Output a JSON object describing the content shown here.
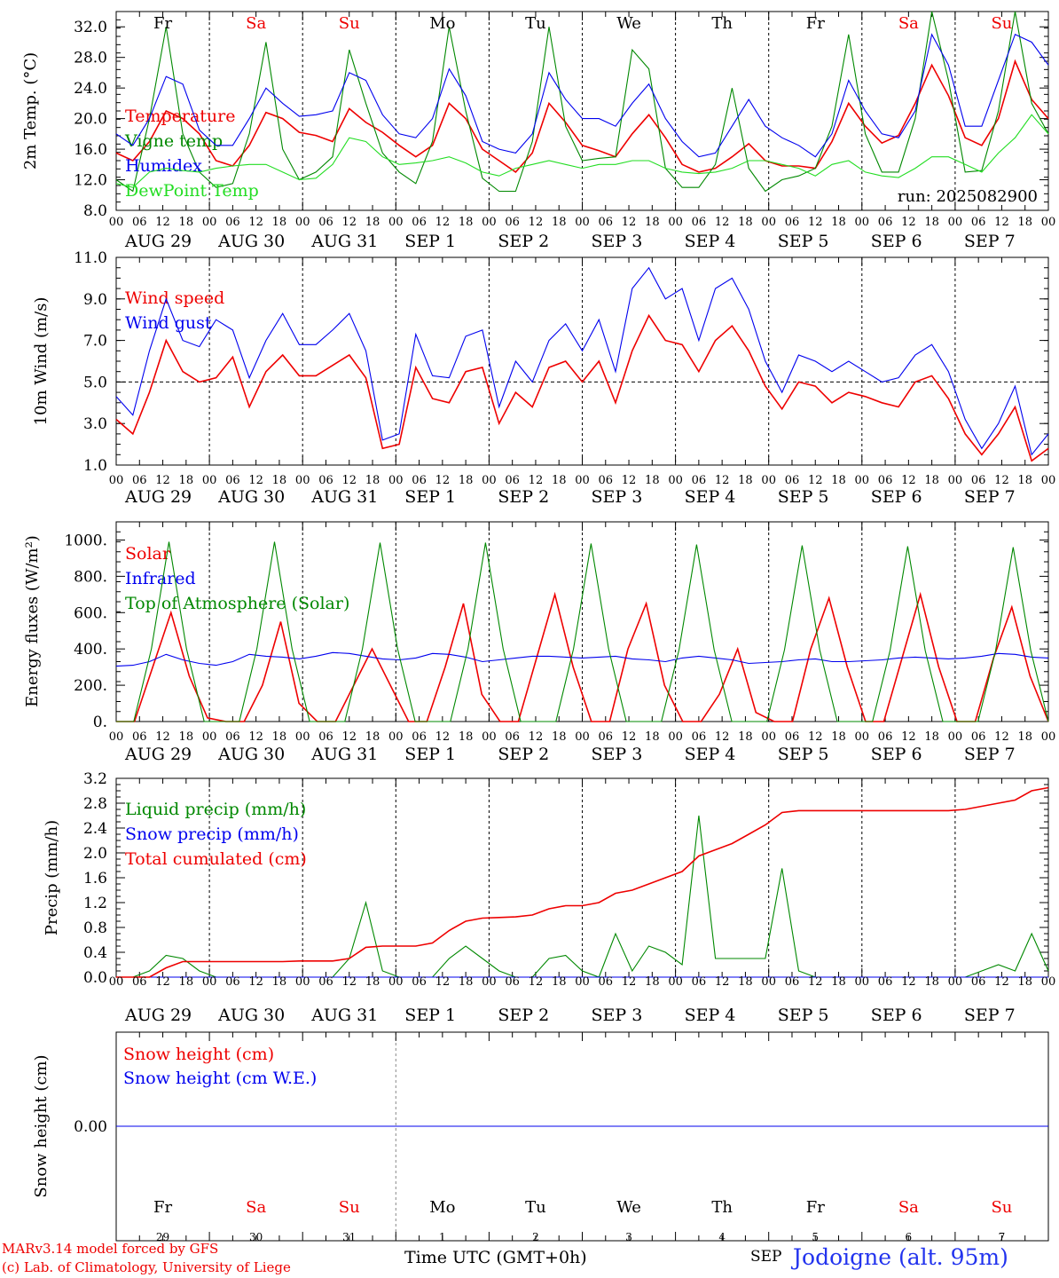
{
  "footer": {
    "model_line": "MARv3.14 model forced by GFS",
    "credit_line": "(c) Lab. of Climatology, University of Liege",
    "time_axis_label": "Time UTC (GMT+0h)",
    "month_label": "SEP",
    "station_label": "Jodoigne (alt. 95m)"
  },
  "colors": {
    "red": "#ee0000",
    "green": "#008800",
    "blue": "#0000ee",
    "lightgreen": "#22dd22",
    "grid": "#555555"
  },
  "days": {
    "weekday_labels": [
      "Fr",
      "Sa",
      "Su",
      "Mo",
      "Tu",
      "We",
      "Th",
      "Fr",
      "Sa",
      "Su"
    ],
    "weekday_colors": [
      "black",
      "red",
      "red",
      "black",
      "black",
      "black",
      "black",
      "black",
      "red",
      "red"
    ],
    "date_labels": [
      "AUG 29",
      "AUG 30",
      "AUG 31",
      "SEP  1",
      "SEP  2",
      "SEP  3",
      "SEP  4",
      "SEP  5",
      "SEP  6",
      "SEP  7"
    ],
    "day_numbers": [
      "29",
      "30",
      "31",
      "1",
      "2",
      "3",
      "4",
      "5",
      "6",
      "7"
    ],
    "hour_ticks": [
      "00",
      "06",
      "12",
      "18"
    ]
  },
  "chart_data": [
    {
      "type": "line",
      "ylabel": "2m Temp. (°C)",
      "ylim": [
        8.0,
        34.0
      ],
      "yticks": [
        8.0,
        12.0,
        16.0,
        20.0,
        24.0,
        28.0,
        32.0
      ],
      "yticks_labels": [
        "8.0",
        "12.0",
        "16.0",
        "20.0",
        "24.0",
        "28.0",
        "32.0"
      ],
      "x_start_hour": 0,
      "x_end_hour": 240,
      "x_step_hours": 6,
      "run_label": "run: 2025082900",
      "series": [
        {
          "name": "Temperature",
          "color": "red",
          "values": [
            15.5,
            14.5,
            17,
            21,
            20,
            18,
            14.5,
            13.8,
            16.5,
            20.8,
            20,
            18.2,
            17.8,
            17,
            21.3,
            19.5,
            18.2,
            16.5,
            15,
            16.5,
            22,
            20,
            16,
            14.5,
            13,
            15.5,
            22,
            19.5,
            16.5,
            15.8,
            15,
            18,
            20.5,
            17.5,
            14,
            13,
            13.5,
            15,
            16.7,
            14.5,
            13.8,
            13.8,
            13.5,
            17,
            22,
            19,
            16.8,
            17.8,
            22,
            27,
            23,
            17.5,
            16.5,
            20,
            27.5,
            22.5,
            20
          ]
        },
        {
          "name": "Vigne temp",
          "color": "green",
          "values": [
            12,
            10.5,
            20,
            32,
            18,
            13,
            11,
            11.5,
            18,
            30,
            16,
            12,
            13,
            15,
            29,
            22,
            15.5,
            13,
            11.5,
            17,
            32,
            21,
            12.2,
            10.5,
            10.5,
            17,
            32,
            19,
            14.5,
            14.8,
            15,
            29,
            26.5,
            13.5,
            11,
            11,
            14,
            24,
            13.5,
            10.5,
            12,
            12.5,
            13.5,
            19,
            31,
            18,
            13,
            13,
            20,
            34,
            25,
            13,
            13.2,
            21,
            34,
            22,
            18
          ]
        },
        {
          "name": "Humidex",
          "color": "blue",
          "values": [
            18,
            16.5,
            20,
            25.5,
            24.5,
            18.5,
            16.5,
            16.5,
            20,
            24,
            22,
            20.3,
            20.5,
            21,
            26,
            25,
            20.5,
            18,
            17.5,
            20,
            26.5,
            23,
            17,
            16,
            15.5,
            18,
            26,
            22.5,
            20,
            20,
            19,
            22,
            24.5,
            20,
            17,
            15,
            15.5,
            19,
            22.5,
            19,
            17.5,
            16.5,
            15,
            18,
            25,
            21,
            18,
            17.5,
            21,
            31,
            27,
            19,
            19,
            25,
            31,
            30,
            27
          ]
        },
        {
          "name": "DewPoint Temp",
          "color": "lightgreen",
          "values": [
            11.5,
            11,
            13,
            13.5,
            13.2,
            13,
            13.5,
            13.8,
            14,
            14,
            13,
            12,
            12.2,
            14,
            17.5,
            17,
            15,
            14,
            14.2,
            14.5,
            15,
            14.2,
            13,
            12.5,
            13.5,
            14,
            14.5,
            14,
            13.5,
            14,
            14,
            14.5,
            14.5,
            13.5,
            13,
            12.8,
            13,
            13.5,
            14.5,
            14.5,
            14,
            13.5,
            12.5,
            14,
            14.5,
            13,
            12.5,
            12.3,
            13.5,
            15,
            15,
            14,
            13,
            15.5,
            17.5,
            20.5,
            18
          ]
        }
      ]
    },
    {
      "type": "line",
      "ylabel": "10m Wind (m/s)",
      "ylim": [
        1.0,
        11.0
      ],
      "yticks": [
        1.0,
        3.0,
        5.0,
        7.0,
        9.0,
        11.0
      ],
      "yticks_labels": [
        "1.0",
        "3.0",
        "5.0",
        "7.0",
        "9.0",
        "11.0"
      ],
      "x_start_hour": 0,
      "x_end_hour": 240,
      "x_step_hours": 6,
      "reference_line": 5.0,
      "series": [
        {
          "name": "Wind speed",
          "color": "red",
          "values": [
            3.2,
            2.5,
            4.5,
            7,
            5.5,
            5,
            5.2,
            6.2,
            3.8,
            5.5,
            6.3,
            5.3,
            5.3,
            5.8,
            6.3,
            5.2,
            1.8,
            2,
            5.7,
            4.2,
            4,
            5.5,
            5.7,
            3,
            4.5,
            3.8,
            5.7,
            6,
            5,
            6,
            4,
            6.5,
            8.2,
            7,
            6.8,
            5.5,
            7,
            7.7,
            6.5,
            4.8,
            3.7,
            5,
            4.8,
            4,
            4.5,
            4.3,
            4,
            3.8,
            5,
            5.3,
            4.2,
            2.5,
            1.5,
            2.5,
            3.8,
            1.2,
            1.8
          ]
        },
        {
          "name": "Wind gust",
          "color": "blue",
          "values": [
            4.3,
            3.4,
            6.5,
            9,
            7,
            6.7,
            8,
            7.5,
            5.2,
            7,
            8.3,
            6.8,
            6.8,
            7.5,
            8.3,
            6.5,
            2.2,
            2.5,
            7.3,
            5.3,
            5.2,
            7.2,
            7.5,
            3.8,
            6,
            5,
            7,
            7.8,
            6.5,
            8,
            5.5,
            9.5,
            10.5,
            9,
            9.5,
            7,
            9.5,
            10,
            8.5,
            6,
            4.5,
            6.3,
            6,
            5.5,
            6,
            5.5,
            5,
            5.2,
            6.3,
            6.8,
            5.5,
            3.2,
            1.8,
            3,
            4.8,
            1.5,
            2.5
          ]
        }
      ]
    },
    {
      "type": "line",
      "ylabel": "Energy fluxes (W/m²)",
      "ylim": [
        0,
        1100
      ],
      "yticks": [
        0,
        200,
        400,
        600,
        800,
        1000
      ],
      "yticks_labels": [
        "0.",
        "200.",
        "400.",
        "600.",
        "800.",
        "1000."
      ],
      "x_start_hour": 0,
      "x_end_hour": 240,
      "x_step_hours": 6,
      "series": [
        {
          "name": "Solar",
          "color": "red",
          "values": [
            0,
            0,
            300,
            600,
            250,
            20,
            0,
            0,
            200,
            550,
            100,
            0,
            0,
            200,
            400,
            200,
            0,
            0,
            300,
            650,
            150,
            0,
            0,
            350,
            700,
            300,
            0,
            0,
            400,
            650,
            200,
            0,
            0,
            150,
            400,
            50,
            0,
            0,
            400,
            680,
            300,
            0,
            0,
            350,
            700,
            300,
            0,
            0,
            350,
            630,
            250,
            0
          ]
        },
        {
          "name": "Infrared",
          "color": "blue",
          "values": [
            305,
            310,
            330,
            370,
            340,
            320,
            310,
            330,
            370,
            360,
            355,
            345,
            360,
            380,
            375,
            360,
            345,
            340,
            350,
            375,
            370,
            355,
            330,
            340,
            350,
            360,
            360,
            355,
            350,
            355,
            360,
            345,
            340,
            330,
            350,
            360,
            350,
            340,
            320,
            325,
            330,
            340,
            345,
            330,
            330,
            335,
            340,
            350,
            355,
            350,
            345,
            350,
            360,
            375,
            370,
            355,
            350
          ]
        },
        {
          "name": "Top of Atmosphere (Solar)",
          "color": "green",
          "values": [
            0,
            0,
            400,
            990,
            400,
            0,
            0,
            0,
            400,
            990,
            400,
            0,
            0,
            0,
            400,
            985,
            400,
            0,
            0,
            0,
            400,
            985,
            400,
            0,
            0,
            0,
            400,
            980,
            400,
            0,
            0,
            0,
            395,
            975,
            395,
            0,
            0,
            0,
            395,
            970,
            395,
            0,
            0,
            0,
            390,
            965,
            390,
            0,
            0,
            0,
            390,
            960,
            390,
            0
          ]
        }
      ]
    },
    {
      "type": "line",
      "ylabel": "Precip (mm/h)",
      "ylim": [
        0.0,
        3.2
      ],
      "yticks": [
        0.0,
        0.4,
        0.8,
        1.2,
        1.6,
        2.0,
        2.4,
        2.8,
        3.2
      ],
      "yticks_labels": [
        "0.0",
        "0.4",
        "0.8",
        "1.2",
        "1.6",
        "2.0",
        "2.4",
        "2.8",
        "3.2"
      ],
      "x_start_hour": 0,
      "x_end_hour": 240,
      "x_step_hours": 6,
      "series": [
        {
          "name": "Liquid precip (mm/h)",
          "color": "green",
          "values": [
            0,
            0,
            0.1,
            0.35,
            0.3,
            0.1,
            0,
            0,
            0,
            0,
            0,
            0,
            0,
            0,
            0.3,
            1.2,
            0.1,
            0,
            0,
            0,
            0.3,
            0.5,
            0.3,
            0.1,
            0,
            0,
            0.3,
            0.35,
            0.1,
            0,
            0.7,
            0.1,
            0.5,
            0.4,
            0.2,
            2.6,
            0.3,
            0.3,
            0.3,
            0.3,
            1.75,
            0.1,
            0,
            0,
            0,
            0,
            0,
            0,
            0,
            0,
            0,
            0,
            0.1,
            0.2,
            0.1,
            0.7,
            0.1
          ]
        },
        {
          "name": "Snow precip (mm/h)",
          "color": "blue",
          "values": [
            0,
            0,
            0,
            0,
            0,
            0,
            0,
            0,
            0,
            0,
            0,
            0,
            0,
            0,
            0,
            0,
            0,
            0,
            0,
            0,
            0,
            0,
            0,
            0,
            0,
            0,
            0,
            0,
            0,
            0,
            0,
            0,
            0,
            0,
            0,
            0,
            0,
            0,
            0,
            0,
            0,
            0,
            0,
            0,
            0,
            0,
            0,
            0,
            0,
            0,
            0,
            0,
            0,
            0,
            0,
            0,
            0
          ]
        },
        {
          "name": "Total cumulated (cm)",
          "color": "red",
          "values": [
            0,
            0,
            0,
            0.15,
            0.25,
            0.25,
            0.25,
            0.25,
            0.25,
            0.25,
            0.25,
            0.26,
            0.26,
            0.26,
            0.3,
            0.48,
            0.5,
            0.5,
            0.5,
            0.55,
            0.75,
            0.9,
            0.95,
            0.96,
            0.97,
            1.0,
            1.1,
            1.15,
            1.15,
            1.2,
            1.35,
            1.4,
            1.5,
            1.6,
            1.7,
            1.95,
            2.05,
            2.15,
            2.3,
            2.45,
            2.65,
            2.68,
            2.68,
            2.68,
            2.68,
            2.68,
            2.68,
            2.68,
            2.68,
            2.68,
            2.68,
            2.7,
            2.75,
            2.8,
            2.85,
            3.0,
            3.05
          ]
        }
      ]
    },
    {
      "type": "line",
      "ylabel": "Snow height (cm)",
      "yticks": [
        0.0
      ],
      "yticks_labels": [
        "0.00"
      ],
      "x_start_hour": 0,
      "x_end_hour": 240,
      "x_step_hours": 6,
      "series": [
        {
          "name": "Snow height (cm)",
          "color": "red",
          "values": [
            0,
            0
          ]
        },
        {
          "name": "Snow height (cm W.E.)",
          "color": "blue",
          "values": [
            0,
            0
          ]
        }
      ]
    }
  ]
}
